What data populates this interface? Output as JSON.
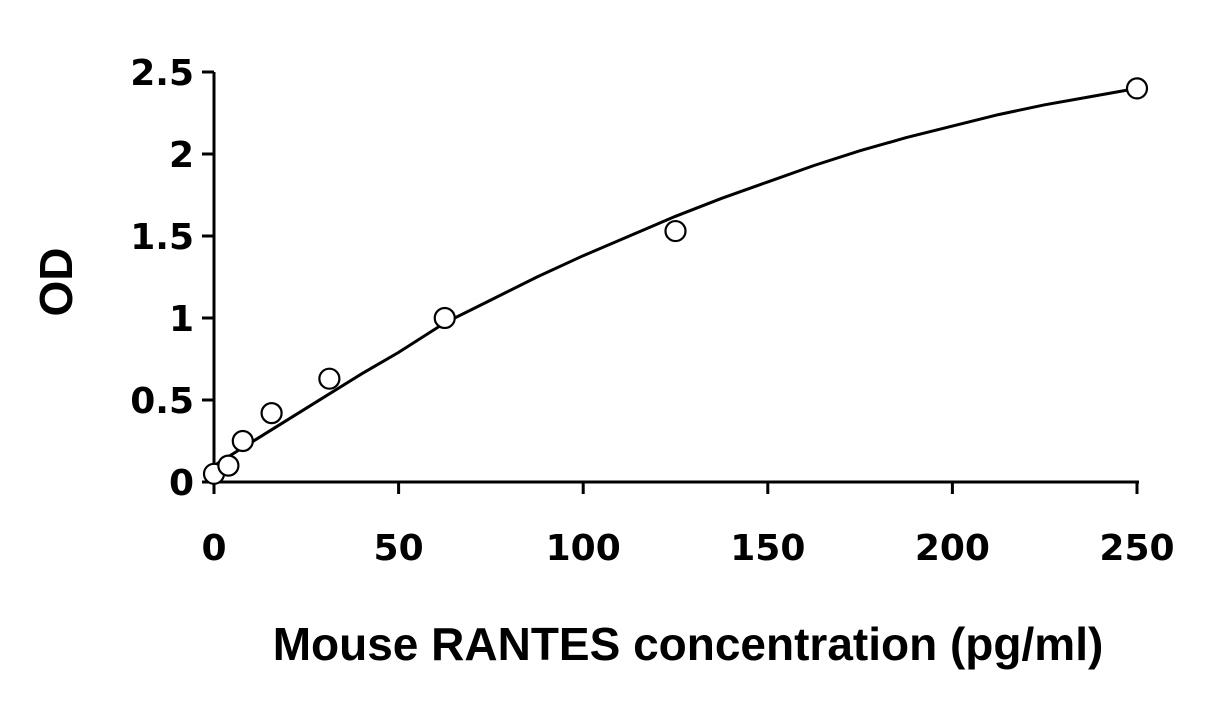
{
  "chart_data": {
    "type": "scatter",
    "title": "",
    "xlabel": "Mouse RANTES concentration (pg/ml)",
    "ylabel": "OD",
    "xlim": [
      0,
      250
    ],
    "ylim": [
      0,
      2.5
    ],
    "xticks": [
      0,
      50,
      100,
      150,
      200,
      250
    ],
    "yticks": [
      0,
      0.5,
      1,
      1.5,
      2,
      2.5
    ],
    "xtick_labels": [
      "0",
      "50",
      "100",
      "150",
      "200",
      "250"
    ],
    "ytick_labels": [
      "0",
      "0.5",
      "1",
      "1.5",
      "2",
      "2.5"
    ],
    "grid": false,
    "legend": "none",
    "series": [
      {
        "marker": "open-circle",
        "x": [
          0,
          3.9,
          7.8,
          15.6,
          31.25,
          62.5,
          125,
          250
        ],
        "y": [
          0.05,
          0.1,
          0.25,
          0.42,
          0.63,
          1.0,
          1.53,
          2.4
        ]
      }
    ],
    "fit_curve": {
      "x": [
        0,
        10,
        20,
        30,
        40,
        50,
        62.5,
        75,
        87.5,
        100,
        112.5,
        125,
        137.5,
        150,
        162.5,
        175,
        187.5,
        200,
        212.5,
        225,
        237.5,
        250
      ],
      "y": [
        0.1,
        0.24,
        0.38,
        0.52,
        0.66,
        0.79,
        0.97,
        1.11,
        1.25,
        1.38,
        1.5,
        1.62,
        1.73,
        1.83,
        1.93,
        2.02,
        2.1,
        2.17,
        2.24,
        2.3,
        2.35,
        2.4
      ]
    }
  }
}
